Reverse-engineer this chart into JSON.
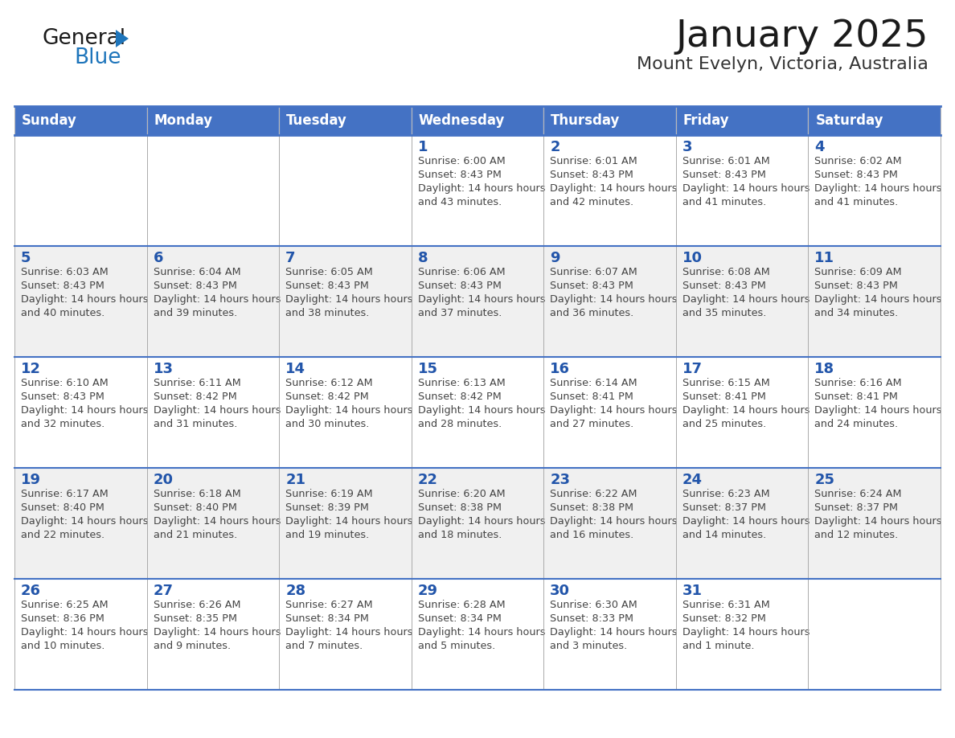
{
  "title": "January 2025",
  "subtitle": "Mount Evelyn, Victoria, Australia",
  "days_of_week": [
    "Sunday",
    "Monday",
    "Tuesday",
    "Wednesday",
    "Thursday",
    "Friday",
    "Saturday"
  ],
  "header_bg": "#4472C4",
  "header_text": "#FFFFFF",
  "row_bg_even": "#FFFFFF",
  "row_bg_odd": "#F0F0F0",
  "cell_border_color": "#AAAAAA",
  "row_separator_color": "#4472C4",
  "title_color": "#1a1a1a",
  "subtitle_color": "#333333",
  "day_num_color": "#2255AA",
  "cell_text_color": "#444444",
  "logo_general_color": "#1a1a1a",
  "logo_blue_color": "#1E75BB",
  "calendar_data": [
    [
      null,
      null,
      null,
      {
        "day": 1,
        "sunrise": "6:00 AM",
        "sunset": "8:43 PM",
        "daylight": "14 hours and 43 minutes"
      },
      {
        "day": 2,
        "sunrise": "6:01 AM",
        "sunset": "8:43 PM",
        "daylight": "14 hours and 42 minutes"
      },
      {
        "day": 3,
        "sunrise": "6:01 AM",
        "sunset": "8:43 PM",
        "daylight": "14 hours and 41 minutes"
      },
      {
        "day": 4,
        "sunrise": "6:02 AM",
        "sunset": "8:43 PM",
        "daylight": "14 hours and 41 minutes"
      }
    ],
    [
      {
        "day": 5,
        "sunrise": "6:03 AM",
        "sunset": "8:43 PM",
        "daylight": "14 hours and 40 minutes"
      },
      {
        "day": 6,
        "sunrise": "6:04 AM",
        "sunset": "8:43 PM",
        "daylight": "14 hours and 39 minutes"
      },
      {
        "day": 7,
        "sunrise": "6:05 AM",
        "sunset": "8:43 PM",
        "daylight": "14 hours and 38 minutes"
      },
      {
        "day": 8,
        "sunrise": "6:06 AM",
        "sunset": "8:43 PM",
        "daylight": "14 hours and 37 minutes"
      },
      {
        "day": 9,
        "sunrise": "6:07 AM",
        "sunset": "8:43 PM",
        "daylight": "14 hours and 36 minutes"
      },
      {
        "day": 10,
        "sunrise": "6:08 AM",
        "sunset": "8:43 PM",
        "daylight": "14 hours and 35 minutes"
      },
      {
        "day": 11,
        "sunrise": "6:09 AM",
        "sunset": "8:43 PM",
        "daylight": "14 hours and 34 minutes"
      }
    ],
    [
      {
        "day": 12,
        "sunrise": "6:10 AM",
        "sunset": "8:43 PM",
        "daylight": "14 hours and 32 minutes"
      },
      {
        "day": 13,
        "sunrise": "6:11 AM",
        "sunset": "8:42 PM",
        "daylight": "14 hours and 31 minutes"
      },
      {
        "day": 14,
        "sunrise": "6:12 AM",
        "sunset": "8:42 PM",
        "daylight": "14 hours and 30 minutes"
      },
      {
        "day": 15,
        "sunrise": "6:13 AM",
        "sunset": "8:42 PM",
        "daylight": "14 hours and 28 minutes"
      },
      {
        "day": 16,
        "sunrise": "6:14 AM",
        "sunset": "8:41 PM",
        "daylight": "14 hours and 27 minutes"
      },
      {
        "day": 17,
        "sunrise": "6:15 AM",
        "sunset": "8:41 PM",
        "daylight": "14 hours and 25 minutes"
      },
      {
        "day": 18,
        "sunrise": "6:16 AM",
        "sunset": "8:41 PM",
        "daylight": "14 hours and 24 minutes"
      }
    ],
    [
      {
        "day": 19,
        "sunrise": "6:17 AM",
        "sunset": "8:40 PM",
        "daylight": "14 hours and 22 minutes"
      },
      {
        "day": 20,
        "sunrise": "6:18 AM",
        "sunset": "8:40 PM",
        "daylight": "14 hours and 21 minutes"
      },
      {
        "day": 21,
        "sunrise": "6:19 AM",
        "sunset": "8:39 PM",
        "daylight": "14 hours and 19 minutes"
      },
      {
        "day": 22,
        "sunrise": "6:20 AM",
        "sunset": "8:38 PM",
        "daylight": "14 hours and 18 minutes"
      },
      {
        "day": 23,
        "sunrise": "6:22 AM",
        "sunset": "8:38 PM",
        "daylight": "14 hours and 16 minutes"
      },
      {
        "day": 24,
        "sunrise": "6:23 AM",
        "sunset": "8:37 PM",
        "daylight": "14 hours and 14 minutes"
      },
      {
        "day": 25,
        "sunrise": "6:24 AM",
        "sunset": "8:37 PM",
        "daylight": "14 hours and 12 minutes"
      }
    ],
    [
      {
        "day": 26,
        "sunrise": "6:25 AM",
        "sunset": "8:36 PM",
        "daylight": "14 hours and 10 minutes"
      },
      {
        "day": 27,
        "sunrise": "6:26 AM",
        "sunset": "8:35 PM",
        "daylight": "14 hours and 9 minutes"
      },
      {
        "day": 28,
        "sunrise": "6:27 AM",
        "sunset": "8:34 PM",
        "daylight": "14 hours and 7 minutes"
      },
      {
        "day": 29,
        "sunrise": "6:28 AM",
        "sunset": "8:34 PM",
        "daylight": "14 hours and 5 minutes"
      },
      {
        "day": 30,
        "sunrise": "6:30 AM",
        "sunset": "8:33 PM",
        "daylight": "14 hours and 3 minutes"
      },
      {
        "day": 31,
        "sunrise": "6:31 AM",
        "sunset": "8:32 PM",
        "daylight": "14 hours and 1 minute"
      },
      null
    ]
  ]
}
